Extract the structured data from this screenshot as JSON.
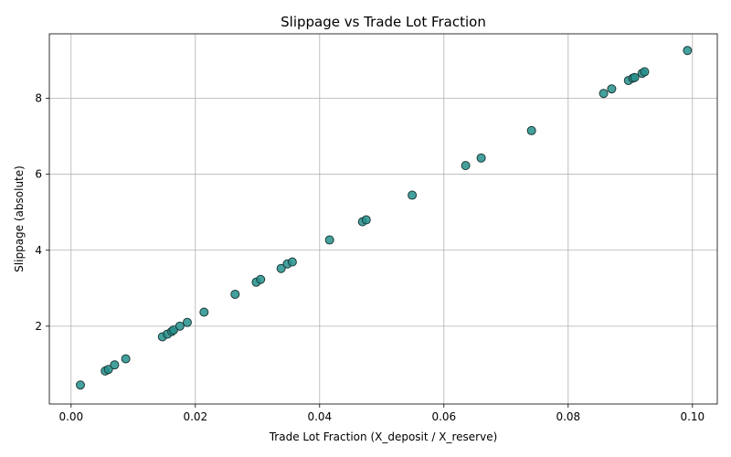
{
  "chart_data": {
    "type": "scatter",
    "title": "Slippage vs Trade Lot Fraction",
    "xlabel": "Trade Lot Fraction (X_deposit / X_reserve)",
    "ylabel": "Slippage (absolute)",
    "xlim": [
      -0.0035,
      0.104
    ],
    "ylim": [
      -0.05,
      9.7
    ],
    "grid": true,
    "color": "#23918c",
    "edge_color": "#1e3a3a",
    "xticks": [
      {
        "value": 0.0,
        "label": "0.00"
      },
      {
        "value": 0.02,
        "label": "0.02"
      },
      {
        "value": 0.04,
        "label": "0.04"
      },
      {
        "value": 0.06,
        "label": "0.06"
      },
      {
        "value": 0.08,
        "label": "0.08"
      },
      {
        "value": 0.1,
        "label": "0.10"
      }
    ],
    "yticks": [
      {
        "value": 2,
        "label": "2"
      },
      {
        "value": 4,
        "label": "4"
      },
      {
        "value": 6,
        "label": "6"
      },
      {
        "value": 8,
        "label": "8"
      }
    ],
    "points": [
      {
        "x": 0.0015,
        "y": 0.45
      },
      {
        "x": 0.0055,
        "y": 0.82
      },
      {
        "x": 0.006,
        "y": 0.86
      },
      {
        "x": 0.007,
        "y": 0.98
      },
      {
        "x": 0.0088,
        "y": 1.14
      },
      {
        "x": 0.0147,
        "y": 1.72
      },
      {
        "x": 0.0155,
        "y": 1.79
      },
      {
        "x": 0.0162,
        "y": 1.86
      },
      {
        "x": 0.0165,
        "y": 1.9
      },
      {
        "x": 0.0175,
        "y": 2.0
      },
      {
        "x": 0.0187,
        "y": 2.1
      },
      {
        "x": 0.0214,
        "y": 2.37
      },
      {
        "x": 0.0264,
        "y": 2.84
      },
      {
        "x": 0.0298,
        "y": 3.16
      },
      {
        "x": 0.0305,
        "y": 3.23
      },
      {
        "x": 0.0338,
        "y": 3.52
      },
      {
        "x": 0.0348,
        "y": 3.64
      },
      {
        "x": 0.0356,
        "y": 3.69
      },
      {
        "x": 0.0416,
        "y": 4.27
      },
      {
        "x": 0.0469,
        "y": 4.75
      },
      {
        "x": 0.0475,
        "y": 4.8
      },
      {
        "x": 0.0549,
        "y": 5.45
      },
      {
        "x": 0.0635,
        "y": 6.23
      },
      {
        "x": 0.066,
        "y": 6.43
      },
      {
        "x": 0.0741,
        "y": 7.15
      },
      {
        "x": 0.0857,
        "y": 8.13
      },
      {
        "x": 0.087,
        "y": 8.25
      },
      {
        "x": 0.0897,
        "y": 8.47
      },
      {
        "x": 0.0904,
        "y": 8.53
      },
      {
        "x": 0.0907,
        "y": 8.55
      },
      {
        "x": 0.0919,
        "y": 8.66
      },
      {
        "x": 0.0923,
        "y": 8.7
      },
      {
        "x": 0.0992,
        "y": 9.26
      }
    ]
  }
}
